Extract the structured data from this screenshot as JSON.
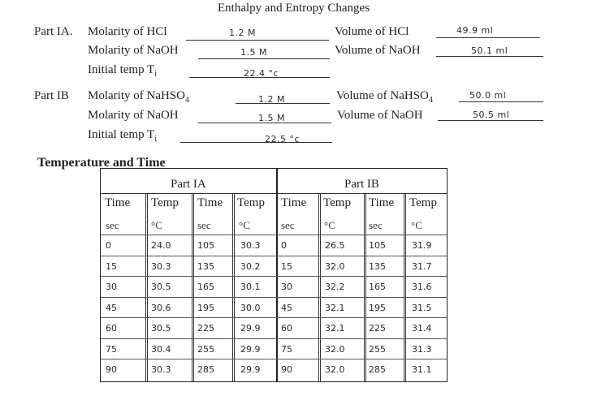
{
  "title": "Enthalpy and Entropy Changes",
  "part_ia": {
    "label": "Part IA.",
    "rows": [
      {
        "label": "Molarity of HCl",
        "value": "1.2 M",
        "right_label": "Volume of HCl",
        "right_value": "49.9 ml"
      },
      {
        "label": "Molarity of NaOH",
        "value": "1.5 M",
        "right_label": "Volume of NaOH",
        "right_value": "50.1 ml"
      },
      {
        "label": "Initial temp T",
        "sub": "i",
        "value": "22.4 °c"
      }
    ]
  },
  "part_ib": {
    "label": "Part IB",
    "rows": [
      {
        "label": "Molarity of NaHSO",
        "sub": "4",
        "value": "1.2 M",
        "right_label": "Volume of NaHSO",
        "right_sub": "4",
        "right_value": "50.0 ml"
      },
      {
        "label": "Molarity of NaOH",
        "value": "1.5 M",
        "right_label": "Volume of NaOH",
        "right_value": "50.5 ml"
      },
      {
        "label": "Initial temp T",
        "sub": "i",
        "value": "22.5 °c"
      }
    ]
  },
  "table": {
    "section_title": "Temperature and Time",
    "group_headers": [
      "Part IA",
      "Part IB"
    ],
    "column_headers": [
      "Time",
      "Temp",
      "Time",
      "Temp",
      "Time",
      "Temp",
      "Time",
      "Temp"
    ],
    "units": [
      "sec",
      "°C",
      "sec",
      "°C",
      "sec",
      "°C",
      "sec",
      "°C"
    ],
    "rows": [
      [
        "0",
        "24.0",
        "105",
        "30.3",
        "0",
        "26.5",
        "105",
        "31.9"
      ],
      [
        "15",
        "30.3",
        "135",
        "30.2",
        "15",
        "32.0",
        "135",
        "31.7"
      ],
      [
        "30",
        "30.5",
        "165",
        "30.1",
        "30",
        "32.2",
        "165",
        "31.6"
      ],
      [
        "45",
        "30.6",
        "195",
        "30.0",
        "45",
        "32.1",
        "195",
        "31.5"
      ],
      [
        "60",
        "30.5",
        "225",
        "29.9",
        "60",
        "32.1",
        "225",
        "31.4"
      ],
      [
        "75",
        "30.4",
        "255",
        "29.9",
        "75",
        "32.0",
        "255",
        "31.3"
      ],
      [
        "90",
        "30.3",
        "285",
        "29.9",
        "90",
        "32.0",
        "285",
        "31.1"
      ]
    ]
  }
}
